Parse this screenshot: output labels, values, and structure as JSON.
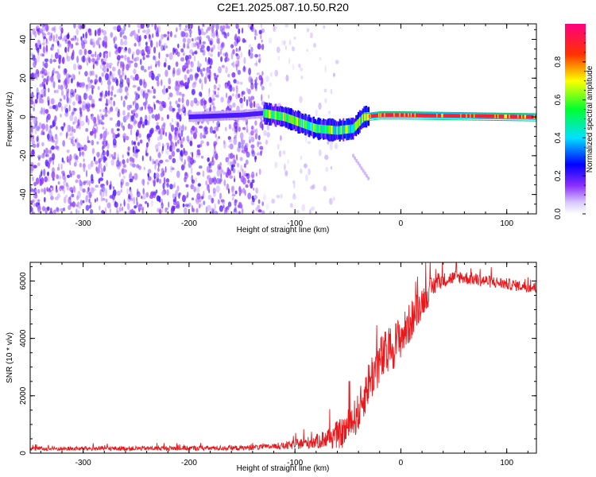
{
  "title": "C2E1.2025.087.10.50.R20",
  "chart_data": [
    {
      "type": "heatmap",
      "name": "spectrogram",
      "xlabel": "Height of straight line (km)",
      "ylabel": "Frequency (Hz)",
      "xlim": [
        -350,
        128
      ],
      "ylim": [
        -50,
        48
      ],
      "xticks": [
        -300,
        -200,
        -100,
        0,
        100
      ],
      "yticks": [
        -40,
        -20,
        0,
        20,
        40
      ],
      "colorbar": {
        "label": "Normalized spectral amplitude",
        "range": [
          0,
          1
        ],
        "ticks": [
          0.0,
          0.2,
          0.4,
          0.6,
          0.8
        ]
      },
      "ridge": [
        {
          "x": -200,
          "y": 0
        },
        {
          "x": -150,
          "y": 1
        },
        {
          "x": -130,
          "y": 2
        },
        {
          "x": -110,
          "y": 0
        },
        {
          "x": -95,
          "y": -3
        },
        {
          "x": -80,
          "y": -6
        },
        {
          "x": -60,
          "y": -7
        },
        {
          "x": -45,
          "y": -6
        },
        {
          "x": -35,
          "y": 0
        },
        {
          "x": -20,
          "y": 1
        },
        {
          "x": 0,
          "y": 1
        },
        {
          "x": 128,
          "y": 0
        }
      ],
      "noise_region_x": [
        -350,
        -130
      ]
    },
    {
      "type": "line",
      "name": "snr",
      "xlabel": "Height of straight line (km)",
      "ylabel": "SNR (10 * v/v)",
      "xlim": [
        -350,
        128
      ],
      "ylim": [
        0,
        6650
      ],
      "xticks": [
        -300,
        -200,
        -100,
        0,
        100
      ],
      "yticks": [
        0,
        2000,
        4000,
        6000
      ],
      "color": "#e8191c",
      "envelope": [
        {
          "x": -350,
          "y": 150
        },
        {
          "x": -150,
          "y": 180
        },
        {
          "x": -110,
          "y": 250
        },
        {
          "x": -80,
          "y": 400
        },
        {
          "x": -55,
          "y": 700
        },
        {
          "x": -40,
          "y": 1400
        },
        {
          "x": -30,
          "y": 2500
        },
        {
          "x": -20,
          "y": 3200
        },
        {
          "x": -10,
          "y": 3600
        },
        {
          "x": 5,
          "y": 4300
        },
        {
          "x": 20,
          "y": 5300
        },
        {
          "x": 35,
          "y": 6000
        },
        {
          "x": 55,
          "y": 6150
        },
        {
          "x": 80,
          "y": 6000
        },
        {
          "x": 128,
          "y": 5750
        }
      ],
      "noise_amplitude": [
        {
          "x": -350,
          "y": 70
        },
        {
          "x": -120,
          "y": 90
        },
        {
          "x": -80,
          "y": 250
        },
        {
          "x": -50,
          "y": 600
        },
        {
          "x": -20,
          "y": 900
        },
        {
          "x": 10,
          "y": 700
        },
        {
          "x": 40,
          "y": 250
        },
        {
          "x": 128,
          "y": 180
        }
      ]
    }
  ]
}
